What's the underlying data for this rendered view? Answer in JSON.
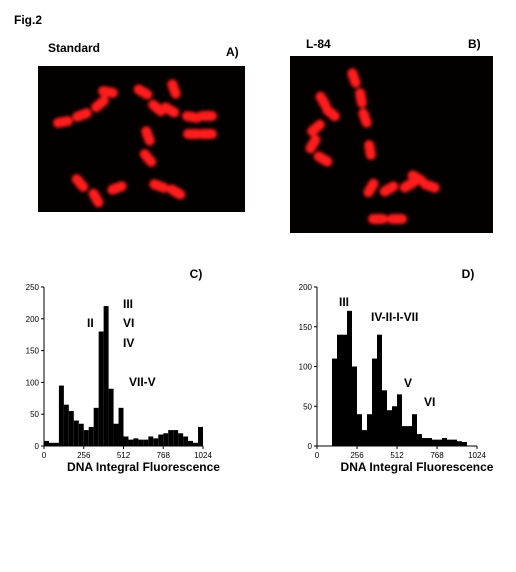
{
  "figure": {
    "title": "Fig.2",
    "panels": [
      {
        "label": "Standard",
        "letter": "A)"
      },
      {
        "label": "L-84",
        "letter": "B)"
      }
    ]
  },
  "chart_data": [
    {
      "type": "histogram",
      "panel": "C)",
      "x_label": "DNA Integral Fluorescence",
      "color": "#000000",
      "bins": [
        0,
        32,
        64,
        96,
        128,
        160,
        192,
        224,
        256,
        288,
        320,
        352,
        384,
        416,
        448,
        480,
        512,
        544,
        576,
        608,
        640,
        672,
        704,
        736,
        768,
        800,
        832,
        864,
        896,
        928,
        960,
        992,
        1024
      ],
      "values": [
        8,
        5,
        5,
        95,
        65,
        55,
        40,
        35,
        25,
        30,
        60,
        180,
        220,
        90,
        35,
        60,
        15,
        10,
        12,
        10,
        10,
        15,
        12,
        18,
        20,
        25,
        25,
        20,
        15,
        8,
        5,
        30
      ],
      "xlim": [
        0,
        1024
      ],
      "xticks": [
        0,
        256,
        512,
        768,
        1024
      ],
      "ylim": [
        0,
        250
      ],
      "yticks": [
        0,
        50,
        100,
        150,
        200,
        250
      ],
      "annotations": [
        "II",
        "III",
        "VI",
        "IV",
        "VII-V"
      ]
    },
    {
      "type": "histogram",
      "panel": "D)",
      "x_label": "DNA Integral Fluorescence",
      "color": "#000000",
      "bins": [
        0,
        32,
        64,
        96,
        128,
        160,
        192,
        224,
        256,
        288,
        320,
        352,
        384,
        416,
        448,
        480,
        512,
        544,
        576,
        608,
        640,
        672,
        704,
        736,
        768,
        800,
        832,
        864,
        896,
        928,
        960,
        992,
        1024
      ],
      "values": [
        0,
        0,
        0,
        110,
        140,
        140,
        170,
        100,
        40,
        20,
        40,
        110,
        140,
        70,
        45,
        50,
        65,
        25,
        25,
        40,
        15,
        10,
        10,
        8,
        8,
        10,
        8,
        8,
        6,
        5,
        0,
        0
      ],
      "xlim": [
        0,
        1024
      ],
      "xticks": [
        0,
        256,
        512,
        768,
        1024
      ],
      "ylim": [
        0,
        200
      ],
      "yticks": [
        0,
        50,
        100,
        150,
        200
      ],
      "annotations": [
        "III",
        "IV-II-I-VII",
        "V",
        "VI"
      ]
    }
  ]
}
